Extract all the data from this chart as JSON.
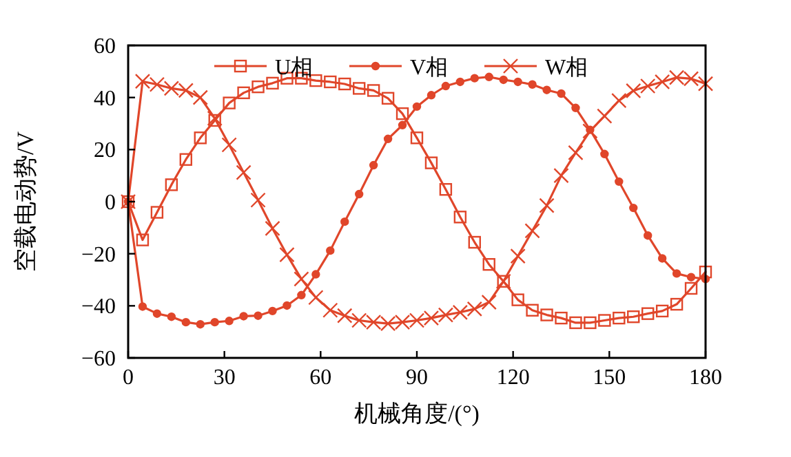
{
  "chart_data": {
    "type": "line",
    "xlabel": "机械角度/(°)",
    "ylabel": "空载电动势/V",
    "x": [
      0,
      4.5,
      9,
      13.5,
      18,
      22.5,
      27,
      31.5,
      36,
      40.5,
      45,
      49.5,
      54,
      58.5,
      63,
      67.5,
      72,
      76.5,
      81,
      85.5,
      90,
      94.5,
      99,
      103.5,
      108,
      112.5,
      117,
      121.5,
      126,
      130.5,
      135,
      139.5,
      144,
      148.5,
      153,
      157.5,
      162,
      166.5,
      171,
      175.5,
      180
    ],
    "series": [
      {
        "name": "U相",
        "color": "#e0462a",
        "marker": "square",
        "values": [
          0,
          -14.7,
          -4.1,
          6.5,
          16.2,
          24.5,
          31.2,
          37.9,
          41.8,
          44.1,
          45.5,
          47.4,
          47.4,
          46.5,
          46,
          45.2,
          43.5,
          42.7,
          39.7,
          33.8,
          24.5,
          14.9,
          4.7,
          -5.9,
          -15.6,
          -24.1,
          -30.6,
          -37.7,
          -41.7,
          -43.5,
          -44.7,
          -46.5,
          -46.5,
          -45.6,
          -44.7,
          -44.2,
          -43,
          -42,
          -39.4,
          -33.3,
          -27
        ]
      },
      {
        "name": "V相",
        "color": "#e0462a",
        "marker": "circle",
        "values": [
          0,
          -40.3,
          -43,
          -44.2,
          -46.3,
          -47.1,
          -46.3,
          -45.8,
          -44,
          -43.8,
          -42,
          -39.9,
          -35.9,
          -27.9,
          -18.8,
          -7.7,
          2.9,
          14,
          24.1,
          29.4,
          36.5,
          40.9,
          44.4,
          46,
          47.4,
          47.9,
          46.8,
          46,
          45,
          42.9,
          41.5,
          36,
          27.6,
          18.3,
          7.7,
          -2.4,
          -13,
          -21.8,
          -27.6,
          -29,
          -29.7
        ]
      },
      {
        "name": "W相",
        "color": "#e0462a",
        "marker": "cross",
        "values": [
          0,
          46.2,
          45,
          43.5,
          42.7,
          40,
          32,
          21.8,
          11.2,
          0.6,
          -10.3,
          -20.4,
          -29.7,
          -36.8,
          -41.7,
          -43.8,
          -45.6,
          -46.3,
          -46.8,
          -46.3,
          -45.6,
          -44.7,
          -43.5,
          -42.5,
          -41.2,
          -38.6,
          -30.6,
          -20.9,
          -11.2,
          -1.5,
          10,
          18.8,
          27.1,
          32.9,
          38.8,
          42.6,
          44.4,
          46,
          47.7,
          47.2,
          45.3
        ]
      }
    ],
    "xlim": [
      0,
      180
    ],
    "xticks": [
      0,
      30,
      60,
      90,
      120,
      150,
      180
    ],
    "ylim": [
      -60,
      60
    ],
    "yticks": [
      -60,
      -40,
      -20,
      0,
      20,
      40,
      60
    ],
    "legend": "top",
    "line_style": "solid"
  }
}
